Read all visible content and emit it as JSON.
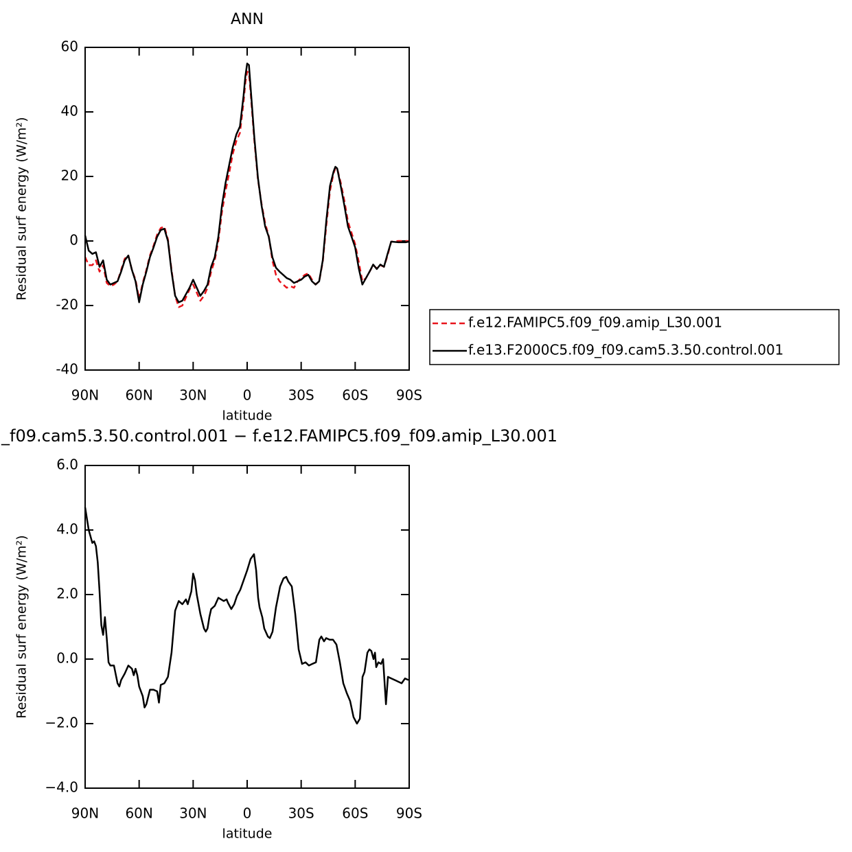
{
  "chart_data": [
    {
      "type": "line",
      "title": "ANN",
      "xlabel": "latitude",
      "ylabel": "Residual surf energy (W/m²)",
      "xlim": [
        90,
        -90
      ],
      "ylim": [
        -40,
        60
      ],
      "xticks": [
        {
          "value": 90,
          "label": "90N"
        },
        {
          "value": 60,
          "label": "60N"
        },
        {
          "value": 30,
          "label": "30N"
        },
        0,
        {
          "value": -30,
          "label": "30S"
        },
        {
          "value": -60,
          "label": "60S"
        },
        {
          "value": -90,
          "label": "90S"
        }
      ],
      "yticks": [
        -40,
        -20,
        0,
        20,
        40,
        60
      ],
      "legend": "right",
      "x": [
        90,
        88,
        86,
        84,
        82,
        80,
        78,
        76,
        74,
        72,
        70,
        68,
        66,
        64,
        62,
        60,
        58,
        56,
        54,
        52,
        50,
        48,
        46,
        44,
        42,
        40,
        38,
        36,
        34,
        32,
        30,
        28,
        26,
        24,
        22,
        20,
        18,
        16,
        14,
        12,
        10,
        8,
        6,
        4,
        2,
        1,
        0,
        -1,
        -2,
        -4,
        -6,
        -8,
        -10,
        -12,
        -14,
        -16,
        -18,
        -20,
        -22,
        -24,
        -26,
        -28,
        -30,
        -32,
        -34,
        -36,
        -38,
        -40,
        -42,
        -44,
        -46,
        -48,
        -49,
        -50,
        -52,
        -54,
        -56,
        -58,
        -60,
        -62,
        -64,
        -66,
        -68,
        -70,
        -72,
        -74,
        -76,
        -78,
        -80,
        -84,
        -88,
        -90
      ],
      "series": [
        {
          "name": "f.e12.FAMIPC5.f09_f09.amip_L30.001",
          "color": "#e8141b",
          "dashed": true,
          "values": [
            -5,
            -7.5,
            -7.5,
            -6,
            -9.5,
            -7.5,
            -13,
            -14,
            -13.5,
            -12.5,
            -9,
            -5.5,
            -4.5,
            -9,
            -12,
            -18,
            -13,
            -9,
            -4.5,
            -1.5,
            2,
            4,
            4.5,
            0.5,
            -9,
            -17,
            -20.5,
            -20,
            -17.5,
            -15,
            -13.5,
            -16,
            -18.5,
            -17,
            -14.5,
            -9.5,
            -6,
            0,
            9,
            15.5,
            21,
            27,
            31,
            33.5,
            43,
            49,
            52.5,
            52,
            45.5,
            31,
            19,
            11.5,
            5.5,
            1.5,
            -6,
            -10.5,
            -12.5,
            -13.5,
            -14.5,
            -14,
            -14.5,
            -12.5,
            -11.5,
            -10.5,
            -10,
            -12,
            -13.5,
            -12.5,
            -6.5,
            5,
            15.5,
            21,
            22.5,
            22.5,
            18,
            12.5,
            6,
            2.5,
            -1,
            -6.5,
            -12.5,
            -11.5,
            -9.5,
            -7.5,
            -8.5,
            -7.5,
            -8,
            -4.5,
            -0.2,
            0,
            0,
            0
          ]
        },
        {
          "name": "f.e13.F2000C5.f09_f09.cam5.3.50.control.001",
          "color": "#000000",
          "dashed": false,
          "values": [
            1.7,
            -3,
            -4,
            -3.5,
            -8,
            -6,
            -12,
            -13.5,
            -13,
            -12.5,
            -9.5,
            -6,
            -4.5,
            -9,
            -12.5,
            -19,
            -13.5,
            -9.5,
            -5,
            -2,
            1.3,
            3.4,
            3.8,
            0,
            -9.5,
            -17,
            -19,
            -18.5,
            -16.5,
            -14.5,
            -12,
            -14.5,
            -17,
            -15.5,
            -13.5,
            -8,
            -5,
            1.3,
            11,
            18,
            23.5,
            29,
            33,
            35.5,
            45,
            51,
            55,
            54.5,
            47,
            32,
            19.5,
            11,
            4.5,
            1.3,
            -5,
            -8.3,
            -9.5,
            -10.5,
            -11.5,
            -12,
            -13,
            -12.5,
            -12,
            -11,
            -10.5,
            -12.5,
            -13.5,
            -12.5,
            -6,
            6.5,
            17,
            21.5,
            23,
            22.5,
            17,
            11,
            4.5,
            1.3,
            -2,
            -8.5,
            -13.5,
            -11.5,
            -9.5,
            -7.3,
            -8.7,
            -7.3,
            -8,
            -4,
            -0.2,
            -0.4,
            -0.4,
            -0.2
          ]
        }
      ]
    },
    {
      "type": "line",
      "title": "_f09.cam5.3.50.control.001 − f.e12.FAMIPC5.f09_f09.amip_L30.001",
      "xlabel": "latitude",
      "ylabel": "Residual surf energy (W/m²)",
      "xlim": [
        90,
        -90
      ],
      "ylim": [
        -4,
        6
      ],
      "xticks": [
        {
          "value": 90,
          "label": "90N"
        },
        {
          "value": 60,
          "label": "60N"
        },
        {
          "value": 30,
          "label": "30N"
        },
        0,
        {
          "value": -30,
          "label": "30S"
        },
        {
          "value": -60,
          "label": "60S"
        },
        {
          "value": -90,
          "label": "90S"
        }
      ],
      "yticks": [
        {
          "value": -4,
          "label": "−4.0"
        },
        {
          "value": -2,
          "label": "−2.0"
        },
        {
          "value": 0,
          "label": "0.0"
        },
        {
          "value": 2,
          "label": "2.0"
        },
        {
          "value": 4,
          "label": "4.0"
        },
        {
          "value": 6,
          "label": "6.0"
        }
      ],
      "x": [
        90,
        88,
        86,
        85,
        84,
        83,
        82,
        81,
        80,
        79,
        78,
        77,
        76,
        74,
        72,
        71,
        70,
        68,
        66,
        64,
        63,
        62,
        61,
        60,
        58,
        57,
        56,
        54,
        52,
        50,
        49,
        48,
        46,
        44,
        42,
        40,
        38,
        36,
        34,
        33,
        31,
        30,
        29,
        28,
        26,
        24,
        23,
        22,
        21,
        20,
        18,
        16,
        13.0,
        11.4,
        10.7,
        8.8,
        7.2,
        5.7,
        3.8,
        1.9,
        0,
        -1.9,
        -3.8,
        -5.0,
        -6.1,
        -6.9,
        -8.4,
        -9.5,
        -11.5,
        -12.6,
        -14.1,
        -16.0,
        -18.3,
        -20.2,
        -21.7,
        -22.9,
        -24.8,
        -26.7,
        -28.6,
        -30.5,
        -32.4,
        -34.3,
        -36.2,
        -38.2,
        -40.1,
        -41.2,
        -42.7,
        -43.9,
        -45.8,
        -47.7,
        -49.6,
        -51.5,
        -53.4,
        -55.3,
        -57.2,
        -59.1,
        -61.0,
        -62.6,
        -64.1,
        -65.2,
        -66.8,
        -67.9,
        -69.0,
        -70.2,
        -71.0,
        -71.7,
        -72.9,
        -74.4,
        -75.5,
        -77.1,
        -78.2,
        -80.1,
        -82.0,
        -83.9,
        -85.8,
        -87.7,
        -89.6
      ],
      "series": [
        {
          "color": "#000000",
          "dashed": false,
          "values": [
            4.7,
            4.0,
            3.6,
            3.65,
            3.5,
            3.0,
            2.1,
            1.05,
            0.75,
            1.3,
            0.65,
            -0.1,
            -0.2,
            -0.2,
            -0.75,
            -0.85,
            -0.65,
            -0.45,
            -0.2,
            -0.3,
            -0.5,
            -0.3,
            -0.5,
            -0.85,
            -1.15,
            -1.5,
            -1.4,
            -0.95,
            -0.95,
            -1.0,
            -1.35,
            -0.8,
            -0.75,
            -0.55,
            0.2,
            1.5,
            1.8,
            1.7,
            1.85,
            1.7,
            2.1,
            2.65,
            2.45,
            2.0,
            1.4,
            0.95,
            0.85,
            0.95,
            1.3,
            1.55,
            1.65,
            1.9,
            1.8,
            1.85,
            1.75,
            1.55,
            1.7,
            1.95,
            2.15,
            2.45,
            2.75,
            3.1,
            3.25,
            2.75,
            1.9,
            1.6,
            1.3,
            0.95,
            0.7,
            0.65,
            0.85,
            1.6,
            2.25,
            2.5,
            2.55,
            2.4,
            2.25,
            1.4,
            0.3,
            -0.15,
            -0.1,
            -0.2,
            -0.15,
            -0.1,
            0.6,
            0.7,
            0.55,
            0.65,
            0.6,
            0.6,
            0.45,
            -0.1,
            -0.75,
            -1.05,
            -1.3,
            -1.8,
            -2.0,
            -1.85,
            -0.55,
            -0.4,
            0.2,
            0.3,
            0.25,
            0,
            0.2,
            -0.25,
            -0.1,
            -0.15,
            0,
            -1.4,
            -0.55,
            -0.6,
            -0.65,
            -0.7,
            -0.75,
            -0.6,
            -0.65
          ]
        }
      ]
    }
  ]
}
